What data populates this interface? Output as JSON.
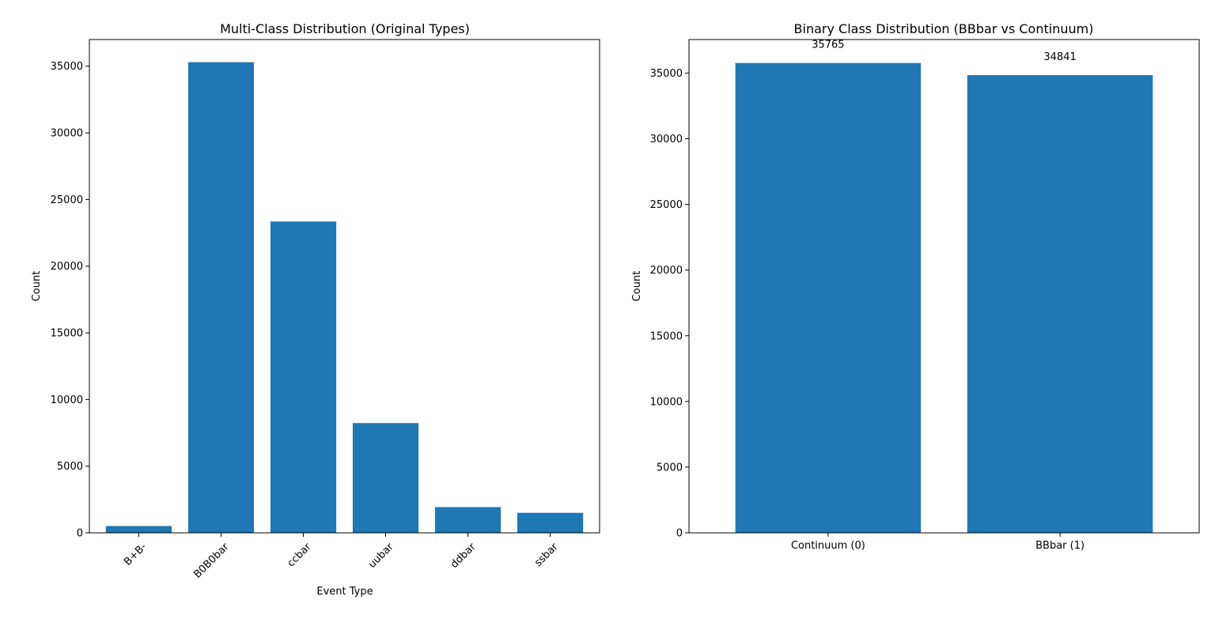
{
  "colors": {
    "bar": "#1f77b4",
    "axis": "#000000",
    "background": "#ffffff"
  },
  "chart_data": [
    {
      "type": "bar",
      "title": "Multi-Class Distribution (Original Types)",
      "xlabel": "Event Type",
      "ylabel": "Count",
      "categories": [
        "B+B-",
        "B0B0bar",
        "ccbar",
        "uubar",
        "ddbar",
        "ssbar"
      ],
      "values": [
        510,
        35300,
        23350,
        8230,
        1930,
        1500
      ],
      "ylim": [
        0,
        37000
      ],
      "yticks": [
        0,
        5000,
        10000,
        15000,
        20000,
        25000,
        30000,
        35000
      ],
      "ytick_labels": [
        "0",
        "5000",
        "10000",
        "15000",
        "20000",
        "25000",
        "30000",
        "35000"
      ],
      "data_labels": [],
      "grid": false,
      "xtick_rotation": 45
    },
    {
      "type": "bar",
      "title": "Binary Class Distribution (BBbar vs Continuum)",
      "xlabel": "",
      "ylabel": "Count",
      "categories": [
        "Continuum (0)",
        "BBbar (1)"
      ],
      "values": [
        35765,
        34841
      ],
      "ylim": [
        0,
        37553
      ],
      "yticks": [
        0,
        5000,
        10000,
        15000,
        20000,
        25000,
        30000,
        35000
      ],
      "ytick_labels": [
        "0",
        "5000",
        "10000",
        "15000",
        "20000",
        "25000",
        "30000",
        "35000"
      ],
      "data_labels": [
        "35765",
        "34841"
      ],
      "grid": false,
      "xtick_rotation": 0
    }
  ]
}
